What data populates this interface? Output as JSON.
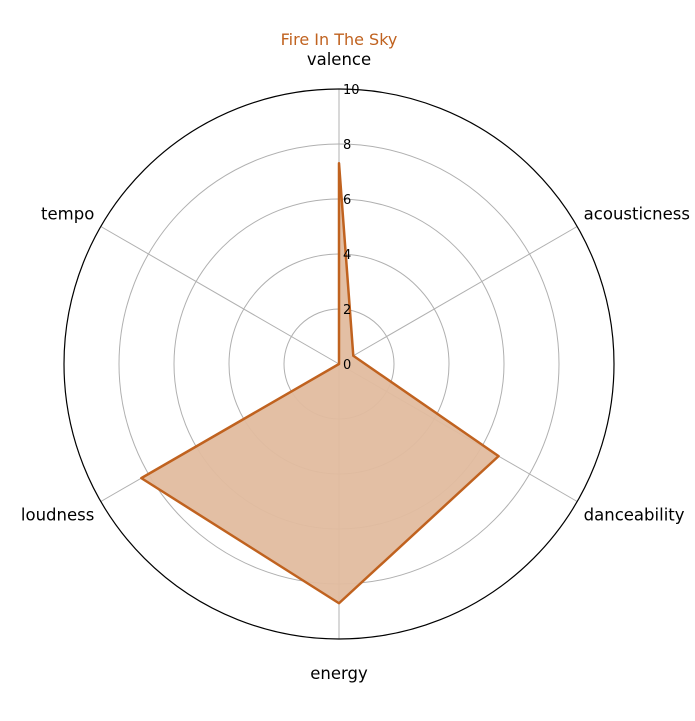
{
  "chart_data": {
    "type": "radar",
    "title": "Fire In The Sky",
    "axes": [
      "valence",
      "acousticness",
      "danceability",
      "energy",
      "loudness",
      "tempo"
    ],
    "series": [
      {
        "name": "",
        "values": [
          7.3,
          0.6,
          6.7,
          8.7,
          8.3,
          0.0
        ]
      }
    ],
    "rlim": [
      0,
      10
    ],
    "r_ticks": [
      0,
      2,
      4,
      6,
      8,
      10
    ],
    "grid": true,
    "color": "#c0621f",
    "fill_color": "#e2bc9f"
  }
}
